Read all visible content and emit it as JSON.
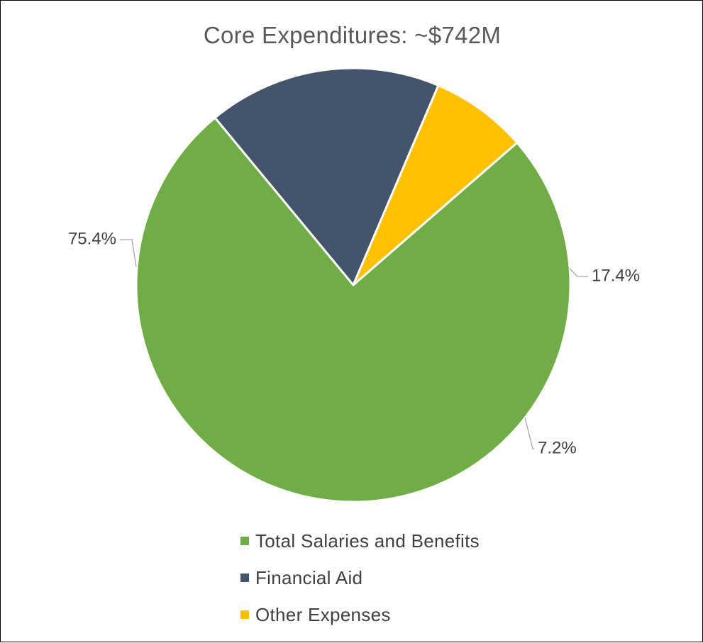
{
  "chart_data": {
    "type": "pie",
    "title": "Core Expenditures: ~$742M",
    "categories": [
      "Total Salaries and Benefits",
      "Financial Aid",
      "Other Expenses"
    ],
    "values": [
      75.4,
      17.4,
      7.2
    ],
    "data_labels": [
      "75.4%",
      "17.4%",
      "7.2%"
    ],
    "colors": [
      "#70AD47",
      "#44546A",
      "#FFC000"
    ],
    "legend_position": "bottom"
  }
}
